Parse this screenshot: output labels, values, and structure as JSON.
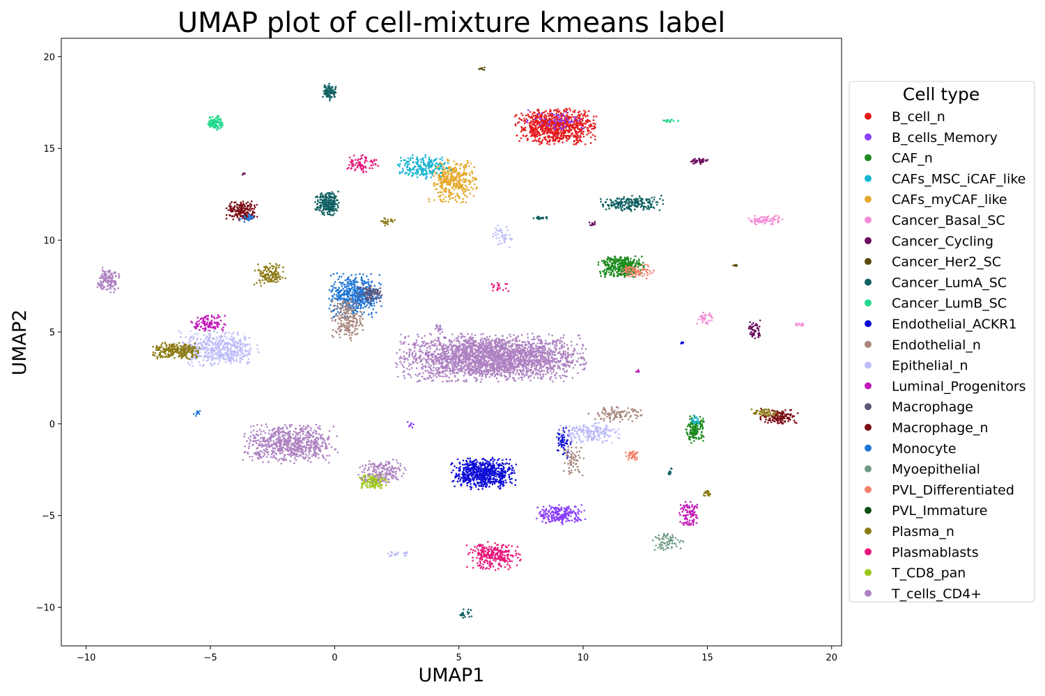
{
  "chart_data": {
    "type": "scatter",
    "title": "UMAP plot of cell-mixture kmeans label",
    "xlabel": "UMAP1",
    "ylabel": "UMAP2",
    "xlim": [
      -11,
      20.4
    ],
    "ylim": [
      -12.1,
      21
    ],
    "xticks": [
      -10,
      -5,
      0,
      5,
      10,
      15,
      20
    ],
    "yticks": [
      -10,
      -5,
      0,
      5,
      10,
      15,
      20
    ],
    "xtick_labels": [
      "−10",
      "−5",
      "0",
      "5",
      "10",
      "15",
      "20"
    ],
    "ytick_labels": [
      "−10",
      "−5",
      "0",
      "5",
      "10",
      "15",
      "20"
    ],
    "grid": false,
    "legend": {
      "title": "Cell type",
      "placement": "outside-right",
      "entries": [
        {
          "name": "B_cell_n",
          "color": "#e31a1c"
        },
        {
          "name": "B_cells_Memory",
          "color": "#8a3ffc"
        },
        {
          "name": "CAF_n",
          "color": "#1c8a1c"
        },
        {
          "name": "CAFs_MSC_iCAF_like",
          "color": "#17b5d3"
        },
        {
          "name": "CAFs_myCAF_like",
          "color": "#e5a82a"
        },
        {
          "name": "Cancer_Basal_SC",
          "color": "#f58cd6"
        },
        {
          "name": "Cancer_Cycling",
          "color": "#6b0d5e"
        },
        {
          "name": "Cancer_Her2_SC",
          "color": "#5a4a0a"
        },
        {
          "name": "Cancer_LumA_SC",
          "color": "#0f6062"
        },
        {
          "name": "Cancer_LumB_SC",
          "color": "#21d88a"
        },
        {
          "name": "Endothelial_ACKR1",
          "color": "#0d0dd6"
        },
        {
          "name": "Endothelial_n",
          "color": "#a8867c"
        },
        {
          "name": "Epithelial_n",
          "color": "#bcbcfa"
        },
        {
          "name": "Luminal_Progenitors",
          "color": "#c21ab8"
        },
        {
          "name": "Macrophage",
          "color": "#5e5478"
        },
        {
          "name": "Macrophage_n",
          "color": "#7a0c14"
        },
        {
          "name": "Monocyte",
          "color": "#1f76d6"
        },
        {
          "name": "Myoepithelial",
          "color": "#6e9a84"
        },
        {
          "name": "PVL_Differentiated",
          "color": "#f5806a"
        },
        {
          "name": "PVL_Immature",
          "color": "#0e4d12"
        },
        {
          "name": "Plasma_n",
          "color": "#8c7a14"
        },
        {
          "name": "Plasmablasts",
          "color": "#e8177a"
        },
        {
          "name": "T_CD8_pan",
          "color": "#9cc61a"
        },
        {
          "name": "T_cells_CD4+",
          "color": "#ae82c2"
        }
      ]
    },
    "clusters": [
      {
        "type": "T_cells_CD4+",
        "x": 6.3,
        "y": 3.6,
        "sx": 1.75,
        "sy": 0.6,
        "n": 2600
      },
      {
        "type": "T_cells_CD4+",
        "x": -1.8,
        "y": -1.1,
        "sx": 0.9,
        "sy": 0.5,
        "n": 700
      },
      {
        "type": "T_cells_CD4+",
        "x": -9.1,
        "y": 7.8,
        "sx": 0.22,
        "sy": 0.35,
        "n": 140
      },
      {
        "type": "T_cells_CD4+",
        "x": 4.2,
        "y": 5.2,
        "sx": 0.1,
        "sy": 0.12,
        "n": 15
      },
      {
        "type": "B_cell_n",
        "x": 8.9,
        "y": 16.2,
        "sx": 0.75,
        "sy": 0.45,
        "n": 900
      },
      {
        "type": "B_cells_Memory",
        "x": 8.95,
        "y": 16.55,
        "sx": 0.55,
        "sy": 0.25,
        "n": 60
      },
      {
        "type": "B_cells_Memory",
        "x": 9.1,
        "y": -4.95,
        "sx": 0.45,
        "sy": 0.25,
        "n": 220
      },
      {
        "type": "B_cells_Memory",
        "x": 3.05,
        "y": -0.05,
        "sx": 0.1,
        "sy": 0.08,
        "n": 8
      },
      {
        "type": "CAFs_myCAF_like",
        "x": 4.75,
        "y": 13.2,
        "sx": 0.45,
        "sy": 0.55,
        "n": 380
      },
      {
        "type": "CAFs_MSC_iCAF_like",
        "x": 3.6,
        "y": 14.0,
        "sx": 0.5,
        "sy": 0.3,
        "n": 200
      },
      {
        "type": "CAF_n",
        "x": 11.5,
        "y": 8.6,
        "sx": 0.45,
        "sy": 0.3,
        "n": 340
      },
      {
        "type": "PVL_Differentiated",
        "x": 12.2,
        "y": 8.3,
        "sx": 0.3,
        "sy": 0.2,
        "n": 80
      },
      {
        "type": "CAF_n",
        "x": 14.5,
        "y": -0.3,
        "sx": 0.17,
        "sy": 0.35,
        "n": 150
      },
      {
        "type": "CAFs_MSC_iCAF_like",
        "x": 14.5,
        "y": 0.2,
        "sx": 0.1,
        "sy": 0.15,
        "n": 20
      },
      {
        "type": "Cancer_LumA_SC",
        "x": 11.9,
        "y": 12.0,
        "sx": 0.65,
        "sy": 0.2,
        "n": 200
      },
      {
        "type": "Cancer_LumA_SC",
        "x": -0.3,
        "y": 12.0,
        "sx": 0.22,
        "sy": 0.3,
        "n": 230
      },
      {
        "type": "Cancer_LumA_SC",
        "x": -0.2,
        "y": 18.1,
        "sx": 0.13,
        "sy": 0.22,
        "n": 90
      },
      {
        "type": "Cancer_LumA_SC",
        "x": 13.5,
        "y": -2.6,
        "sx": 0.05,
        "sy": 0.1,
        "n": 10
      },
      {
        "type": "Cancer_LumB_SC",
        "x": -4.8,
        "y": 16.4,
        "sx": 0.15,
        "sy": 0.18,
        "n": 100
      },
      {
        "type": "Cancer_LumB_SC",
        "x": 13.5,
        "y": 16.5,
        "sx": 0.18,
        "sy": 0.04,
        "n": 15
      },
      {
        "type": "Macrophage_n",
        "x": -3.7,
        "y": 11.6,
        "sx": 0.3,
        "sy": 0.25,
        "n": 180
      },
      {
        "type": "Monocyte",
        "x": -3.5,
        "y": 11.2,
        "sx": 0.15,
        "sy": 0.1,
        "n": 25
      },
      {
        "type": "Monocyte",
        "x": 0.8,
        "y": 7.0,
        "sx": 0.5,
        "sy": 0.55,
        "n": 500
      },
      {
        "type": "Endothelial_n",
        "x": 0.5,
        "y": 5.7,
        "sx": 0.3,
        "sy": 0.55,
        "n": 200
      },
      {
        "type": "Macrophage",
        "x": 1.4,
        "y": 7.1,
        "sx": 0.25,
        "sy": 0.25,
        "n": 80
      },
      {
        "type": "Epithelial_n",
        "x": -4.7,
        "y": 4.1,
        "sx": 0.75,
        "sy": 0.45,
        "n": 500
      },
      {
        "type": "Plasma_n",
        "x": -6.3,
        "y": 3.95,
        "sx": 0.5,
        "sy": 0.22,
        "n": 260
      },
      {
        "type": "Luminal_Progenitors",
        "x": -5.1,
        "y": 5.5,
        "sx": 0.35,
        "sy": 0.2,
        "n": 110
      },
      {
        "type": "Plasma_n",
        "x": -2.6,
        "y": 8.1,
        "sx": 0.3,
        "sy": 0.3,
        "n": 130
      },
      {
        "type": "Plasma_n",
        "x": 2.1,
        "y": 11.0,
        "sx": 0.15,
        "sy": 0.12,
        "n": 25
      },
      {
        "type": "Endothelial_ACKR1",
        "x": 6.0,
        "y": -2.7,
        "sx": 0.6,
        "sy": 0.4,
        "n": 650
      },
      {
        "type": "Endothelial_ACKR1",
        "x": 9.2,
        "y": -1.0,
        "sx": 0.15,
        "sy": 0.4,
        "n": 60
      },
      {
        "type": "Epithelial_n",
        "x": 10.2,
        "y": -0.5,
        "sx": 0.6,
        "sy": 0.25,
        "n": 200
      },
      {
        "type": "Endothelial_n",
        "x": 11.3,
        "y": 0.5,
        "sx": 0.5,
        "sy": 0.2,
        "n": 100
      },
      {
        "type": "Endothelial_n",
        "x": 9.6,
        "y": -2.0,
        "sx": 0.2,
        "sy": 0.4,
        "n": 60
      },
      {
        "type": "PVL_Differentiated",
        "x": 12.0,
        "y": -1.7,
        "sx": 0.15,
        "sy": 0.15,
        "n": 40
      },
      {
        "type": "Macrophage_n",
        "x": 17.9,
        "y": 0.4,
        "sx": 0.35,
        "sy": 0.2,
        "n": 150
      },
      {
        "type": "Plasma_n",
        "x": 17.3,
        "y": 0.6,
        "sx": 0.25,
        "sy": 0.12,
        "n": 50
      },
      {
        "type": "Cancer_Cycling",
        "x": 14.7,
        "y": 14.3,
        "sx": 0.2,
        "sy": 0.07,
        "n": 40
      },
      {
        "type": "Cancer_Cycling",
        "x": 16.9,
        "y": 5.1,
        "sx": 0.12,
        "sy": 0.25,
        "n": 50
      },
      {
        "type": "Cancer_Basal_SC",
        "x": 17.3,
        "y": 11.1,
        "sx": 0.35,
        "sy": 0.12,
        "n": 80
      },
      {
        "type": "Cancer_Basal_SC",
        "x": 14.9,
        "y": 5.75,
        "sx": 0.15,
        "sy": 0.15,
        "n": 40
      },
      {
        "type": "Cancer_Basal_SC",
        "x": 18.7,
        "y": 5.4,
        "sx": 0.1,
        "sy": 0.05,
        "n": 12
      },
      {
        "type": "Plasmablasts",
        "x": 6.4,
        "y": -7.2,
        "sx": 0.5,
        "sy": 0.35,
        "n": 280
      },
      {
        "type": "Plasmablasts",
        "x": 1.1,
        "y": 14.2,
        "sx": 0.3,
        "sy": 0.25,
        "n": 80
      },
      {
        "type": "Luminal_Progenitors",
        "x": 14.3,
        "y": -5.0,
        "sx": 0.2,
        "sy": 0.35,
        "n": 100
      },
      {
        "type": "Plasma_n",
        "x": 15.0,
        "y": -3.8,
        "sx": 0.1,
        "sy": 0.1,
        "n": 20
      },
      {
        "type": "Myoepithelial",
        "x": 13.4,
        "y": -6.4,
        "sx": 0.3,
        "sy": 0.25,
        "n": 70
      },
      {
        "type": "T_CD8_pan",
        "x": 1.5,
        "y": -3.1,
        "sx": 0.3,
        "sy": 0.2,
        "n": 140
      },
      {
        "type": "T_cells_CD4+",
        "x": 1.9,
        "y": -2.6,
        "sx": 0.45,
        "sy": 0.35,
        "n": 160
      },
      {
        "type": "Epithelial_n",
        "x": 6.8,
        "y": 10.2,
        "sx": 0.2,
        "sy": 0.3,
        "n": 40
      },
      {
        "type": "Epithelial_n",
        "x": 2.5,
        "y": -7.1,
        "sx": 0.2,
        "sy": 0.08,
        "n": 25
      },
      {
        "type": "Cancer_Her2_SC",
        "x": 5.95,
        "y": 19.35,
        "sx": 0.07,
        "sy": 0.05,
        "n": 8
      },
      {
        "type": "Cancer_LumA_SC",
        "x": 5.2,
        "y": -10.35,
        "sx": 0.15,
        "sy": 0.12,
        "n": 20
      },
      {
        "type": "Monocyte",
        "x": -5.5,
        "y": 0.6,
        "sx": 0.1,
        "sy": 0.08,
        "n": 10
      },
      {
        "type": "Plasmablasts",
        "x": 6.6,
        "y": 7.5,
        "sx": 0.2,
        "sy": 0.15,
        "n": 20
      },
      {
        "type": "Cancer_Her2_SC",
        "x": 16.1,
        "y": 8.6,
        "sx": 0.05,
        "sy": 0.05,
        "n": 6
      },
      {
        "type": "Luminal_Progenitors",
        "x": 12.2,
        "y": 2.9,
        "sx": 0.05,
        "sy": 0.05,
        "n": 6
      },
      {
        "type": "Cancer_Cycling",
        "x": -3.7,
        "y": 13.6,
        "sx": 0.05,
        "sy": 0.05,
        "n": 5
      },
      {
        "type": "Endothelial_ACKR1",
        "x": 14.0,
        "y": 4.4,
        "sx": 0.05,
        "sy": 0.05,
        "n": 5
      },
      {
        "type": "Cancer_LumA_SC",
        "x": 8.3,
        "y": 11.2,
        "sx": 0.15,
        "sy": 0.05,
        "n": 20
      },
      {
        "type": "Cancer_Cycling",
        "x": 10.4,
        "y": 10.9,
        "sx": 0.1,
        "sy": 0.1,
        "n": 10
      }
    ]
  }
}
